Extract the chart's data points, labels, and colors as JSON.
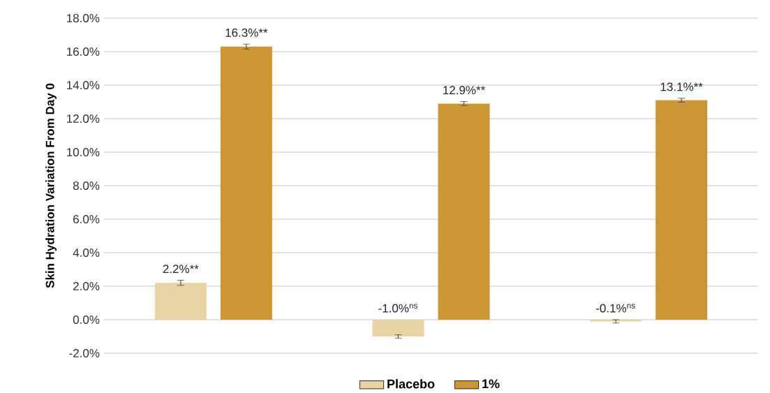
{
  "chart_data": {
    "type": "bar",
    "ylabel": "Skin Hydration Variation From Day 0",
    "categories": [
      null,
      null,
      null
    ],
    "series": [
      {
        "name": "Placebo",
        "color": "#e8d3a4",
        "values": [
          2.2,
          -1.0,
          -0.1
        ],
        "errors": [
          0.15,
          0.1,
          0.1
        ],
        "value_labels": [
          "2.2%**",
          "-1.0%$^{ns}$",
          "-0.1%$^{ns}$"
        ]
      },
      {
        "name": "1%",
        "color": "#cc9635",
        "values": [
          16.3,
          12.9,
          13.1
        ],
        "errors": [
          0.15,
          0.12,
          0.12
        ],
        "value_labels": [
          "16.3%**",
          "12.9%**",
          "13.1%**"
        ]
      }
    ],
    "ylim": [
      -2,
      18
    ],
    "yticks": [
      {
        "value": -2,
        "label": "-2.0%"
      },
      {
        "value": 0,
        "label": "0.0%"
      },
      {
        "value": 2,
        "label": "2.0%"
      },
      {
        "value": 4,
        "label": "4.0%"
      },
      {
        "value": 6,
        "label": "6.0%"
      },
      {
        "value": 8,
        "label": "8.0%"
      },
      {
        "value": 10,
        "label": "10.0%"
      },
      {
        "value": 12,
        "label": "12.0%"
      },
      {
        "value": 14,
        "label": "14.0%"
      },
      {
        "value": 16,
        "label": "16.0%"
      },
      {
        "value": 18,
        "label": "18.0%"
      }
    ],
    "grid": "y",
    "legend": "bottom"
  }
}
